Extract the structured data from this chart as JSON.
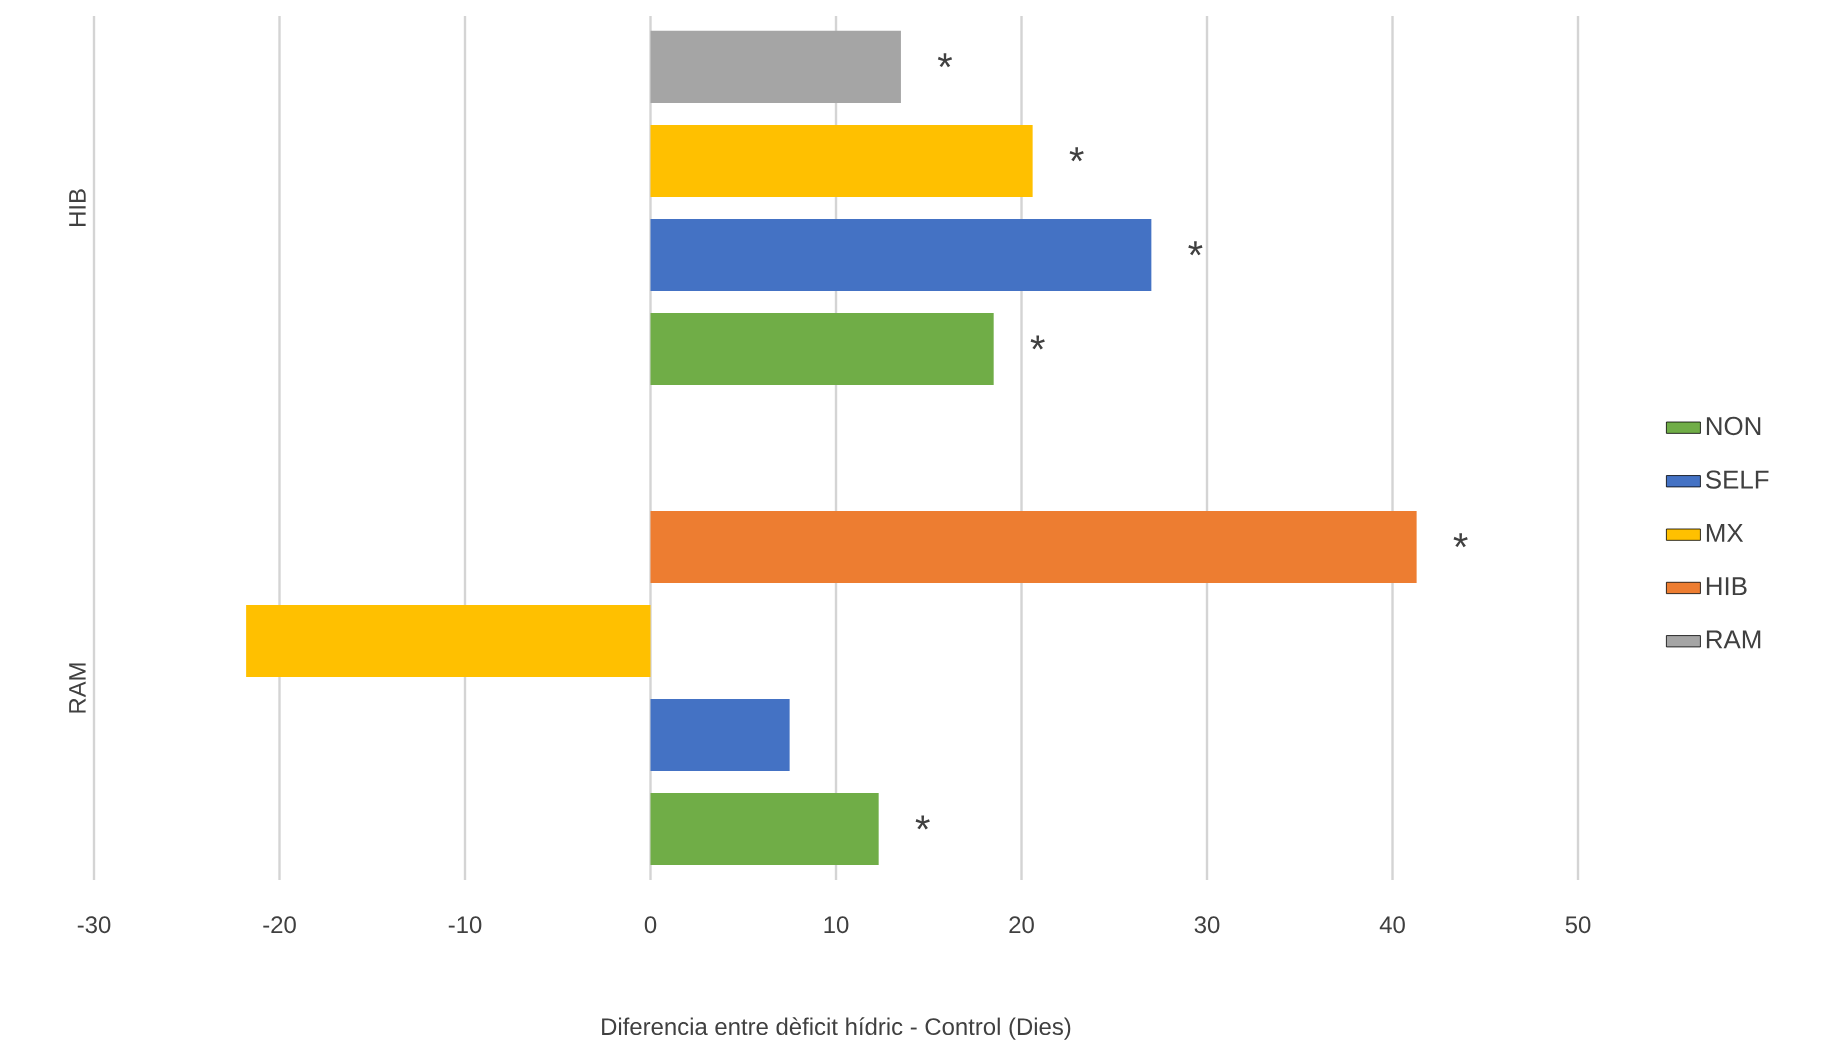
{
  "chart_data": {
    "type": "bar",
    "orientation": "horizontal",
    "xlabel": "Diferencia entre dèficit hídric - Control (Dies)",
    "categories": [
      "HIB",
      "RAM"
    ],
    "series": [
      {
        "name": "NON",
        "color": "#70ad47",
        "values": [
          18.5,
          12.3
        ],
        "value_labels": [
          "*",
          "*"
        ]
      },
      {
        "name": "SELF",
        "color": "#4472c4",
        "values": [
          27.0,
          7.5
        ],
        "value_labels": [
          "*",
          null
        ]
      },
      {
        "name": "MX",
        "color": "#ffc000",
        "values": [
          20.6,
          -21.8
        ],
        "value_labels": [
          "*",
          null
        ]
      },
      {
        "name": "HIB",
        "color": "#ed7d31",
        "values": [
          null,
          41.3
        ],
        "value_labels": [
          null,
          "*"
        ]
      },
      {
        "name": "RAM",
        "color": "#a5a5a5",
        "values": [
          13.5,
          null
        ],
        "value_labels": [
          "*",
          null
        ]
      }
    ],
    "xlim": [
      -30,
      50
    ],
    "xticks": [
      -30,
      -20,
      -10,
      0,
      10,
      20,
      30,
      40,
      50
    ],
    "grid": "x",
    "legend": "right"
  }
}
